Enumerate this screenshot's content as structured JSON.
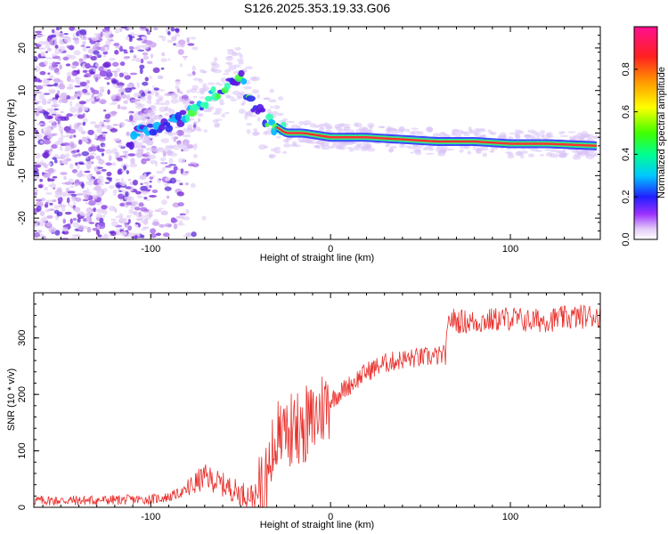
{
  "title": "S126.2025.353.19.33.G06",
  "colors": {
    "snr_line": "#e8302c",
    "axis": "#000000",
    "background": "#ffffff"
  },
  "chart_data": [
    {
      "type": "heatmap",
      "name": "spectrogram",
      "xlabel": "Height of straight line (km)",
      "ylabel": "Frequency (Hz)",
      "xlim": [
        -165,
        150
      ],
      "ylim": [
        -25,
        25
      ],
      "x_ticks": [
        -100,
        0,
        100
      ],
      "y_ticks": [
        -20,
        -10,
        0,
        10,
        20
      ],
      "trace_ridge": [
        {
          "x": -110,
          "y": 0
        },
        {
          "x": -95,
          "y": 1
        },
        {
          "x": -85,
          "y": 3
        },
        {
          "x": -75,
          "y": 6
        },
        {
          "x": -65,
          "y": 9
        },
        {
          "x": -55,
          "y": 12
        },
        {
          "x": -50,
          "y": 14
        },
        {
          "x": -45,
          "y": 7
        },
        {
          "x": -38,
          "y": 4
        },
        {
          "x": -32,
          "y": 2
        },
        {
          "x": -25,
          "y": 0
        },
        {
          "x": -15,
          "y": 0
        },
        {
          "x": 0,
          "y": -1
        },
        {
          "x": 20,
          "y": -1
        },
        {
          "x": 40,
          "y": -1.5
        },
        {
          "x": 60,
          "y": -2
        },
        {
          "x": 80,
          "y": -2
        },
        {
          "x": 100,
          "y": -2.5
        },
        {
          "x": 120,
          "y": -2.5
        },
        {
          "x": 148,
          "y": -3
        }
      ],
      "colorbar": {
        "label": "Normalized spectral amplitude",
        "range": [
          0,
          1
        ],
        "ticks": [
          "0.0",
          "0.2",
          "0.4",
          "0.6",
          "0.8"
        ]
      }
    },
    {
      "type": "line",
      "name": "snr",
      "xlabel": "Height of straight line (km)",
      "ylabel": "SNR (10 * v/v)",
      "xlim": [
        -165,
        150
      ],
      "ylim": [
        0,
        380
      ],
      "x_ticks": [
        -100,
        0,
        100
      ],
      "y_ticks": [
        0,
        100,
        200,
        300
      ],
      "series": [
        {
          "name": "SNR",
          "x": [
            -165,
            -140,
            -120,
            -100,
            -90,
            -80,
            -70,
            -60,
            -50,
            -40,
            -35,
            -30,
            -25,
            -20,
            -15,
            -10,
            -5,
            0,
            10,
            20,
            30,
            40,
            50,
            60,
            64,
            66,
            70,
            80,
            90,
            100,
            110,
            120,
            130,
            140,
            150
          ],
          "values": [
            12,
            12,
            13,
            14,
            18,
            30,
            55,
            40,
            25,
            18,
            60,
            120,
            140,
            130,
            145,
            150,
            175,
            190,
            215,
            240,
            255,
            262,
            265,
            268,
            270,
            335,
            330,
            328,
            332,
            335,
            330,
            332,
            335,
            338,
            340
          ]
        }
      ]
    }
  ]
}
